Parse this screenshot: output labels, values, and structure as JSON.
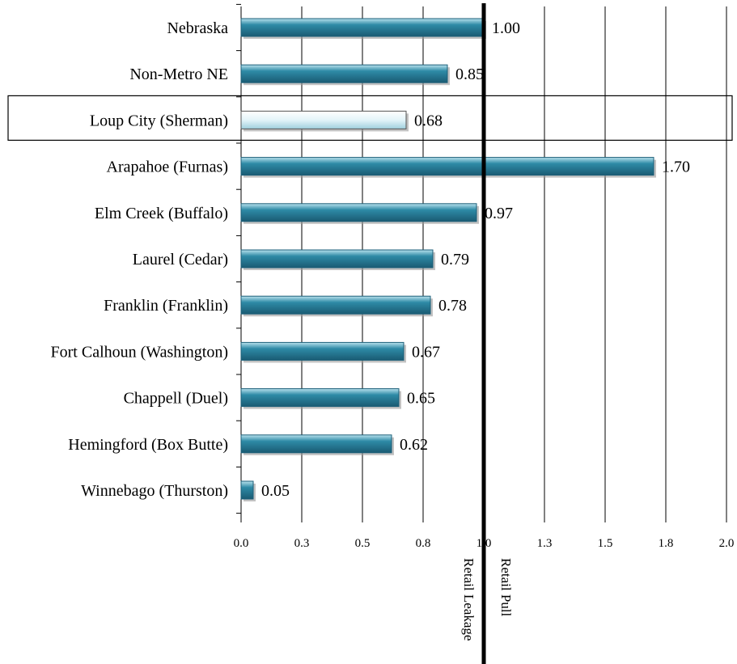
{
  "chart_data": {
    "type": "bar",
    "orientation": "horizontal",
    "categories": [
      "Nebraska",
      "Non-Metro NE",
      "Loup City (Sherman)",
      "Arapahoe (Furnas)",
      "Elm Creek (Buffalo)",
      "Laurel (Cedar)",
      "Franklin (Franklin)",
      "Fort Calhoun (Washington)",
      "Chappell (Duel)",
      "Hemingford (Box Butte)",
      "Winnebago (Thurston)"
    ],
    "values": [
      1.0,
      0.85,
      0.68,
      1.7,
      0.97,
      0.79,
      0.78,
      0.67,
      0.65,
      0.62,
      0.05
    ],
    "value_labels": [
      "1.00",
      "0.85",
      "0.68",
      "1.70",
      "0.97",
      "0.79",
      "0.78",
      "0.67",
      "0.65",
      "0.62",
      "0.05"
    ],
    "highlighted_category": "Loup City (Sherman)",
    "xlim": [
      0,
      2.0
    ],
    "x_ticks": [
      0,
      0.25,
      0.5,
      0.75,
      1.0,
      1.25,
      1.5,
      1.75,
      2.0
    ],
    "x_tick_labels": [
      "0.0",
      "0.3",
      "0.5",
      "0.8",
      "1.0",
      "1.3",
      "1.5",
      "1.8",
      "2.0"
    ],
    "reference_line": 1.0,
    "reference_labels": {
      "left": "Retail Leakage",
      "right": "Retail Pull"
    },
    "grid": "vertical",
    "legend": "none",
    "title": "",
    "xlabel": "",
    "ylabel": ""
  },
  "colors": {
    "bar": "#2e8aa6",
    "bar_dark": "#1c5f78",
    "bar_light": "#7cc3d8",
    "highlight_bar": "#eaf6fa",
    "gridline": "#000000",
    "reference_line": "#000000"
  }
}
